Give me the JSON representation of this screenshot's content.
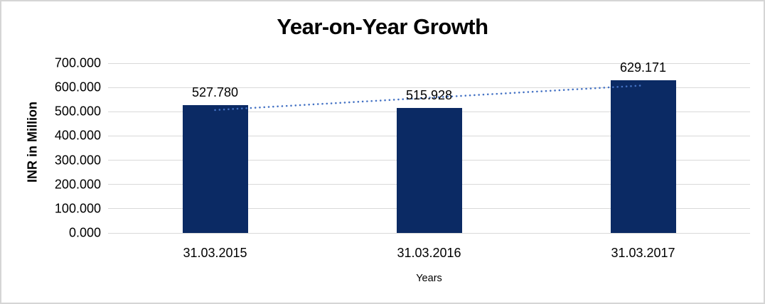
{
  "chart_data": {
    "type": "bar",
    "title": "Year-on-Year Growth",
    "xlabel": "Years",
    "ylabel": "INR in Million",
    "categories": [
      "31.03.2015",
      "31.03.2016",
      "31.03.2017"
    ],
    "values": [
      527.78,
      515.928,
      629.171
    ],
    "value_labels": [
      "527.780",
      "515.928",
      "629.171"
    ],
    "ylim": [
      0,
      700
    ],
    "ytick_step": 100,
    "ytick_labels": [
      "0.000",
      "100.000",
      "200.000",
      "300.000",
      "400.000",
      "500.000",
      "600.000",
      "700.000"
    ],
    "grid": true,
    "legend_position": "none",
    "trendline": {
      "type": "linear",
      "style": "dotted"
    },
    "colors": {
      "bar": "#0b2a64",
      "trendline": "#4472c4",
      "gridline": "#d9d9d9",
      "text": "#000000",
      "frame_border": "#d5d5d5"
    }
  }
}
